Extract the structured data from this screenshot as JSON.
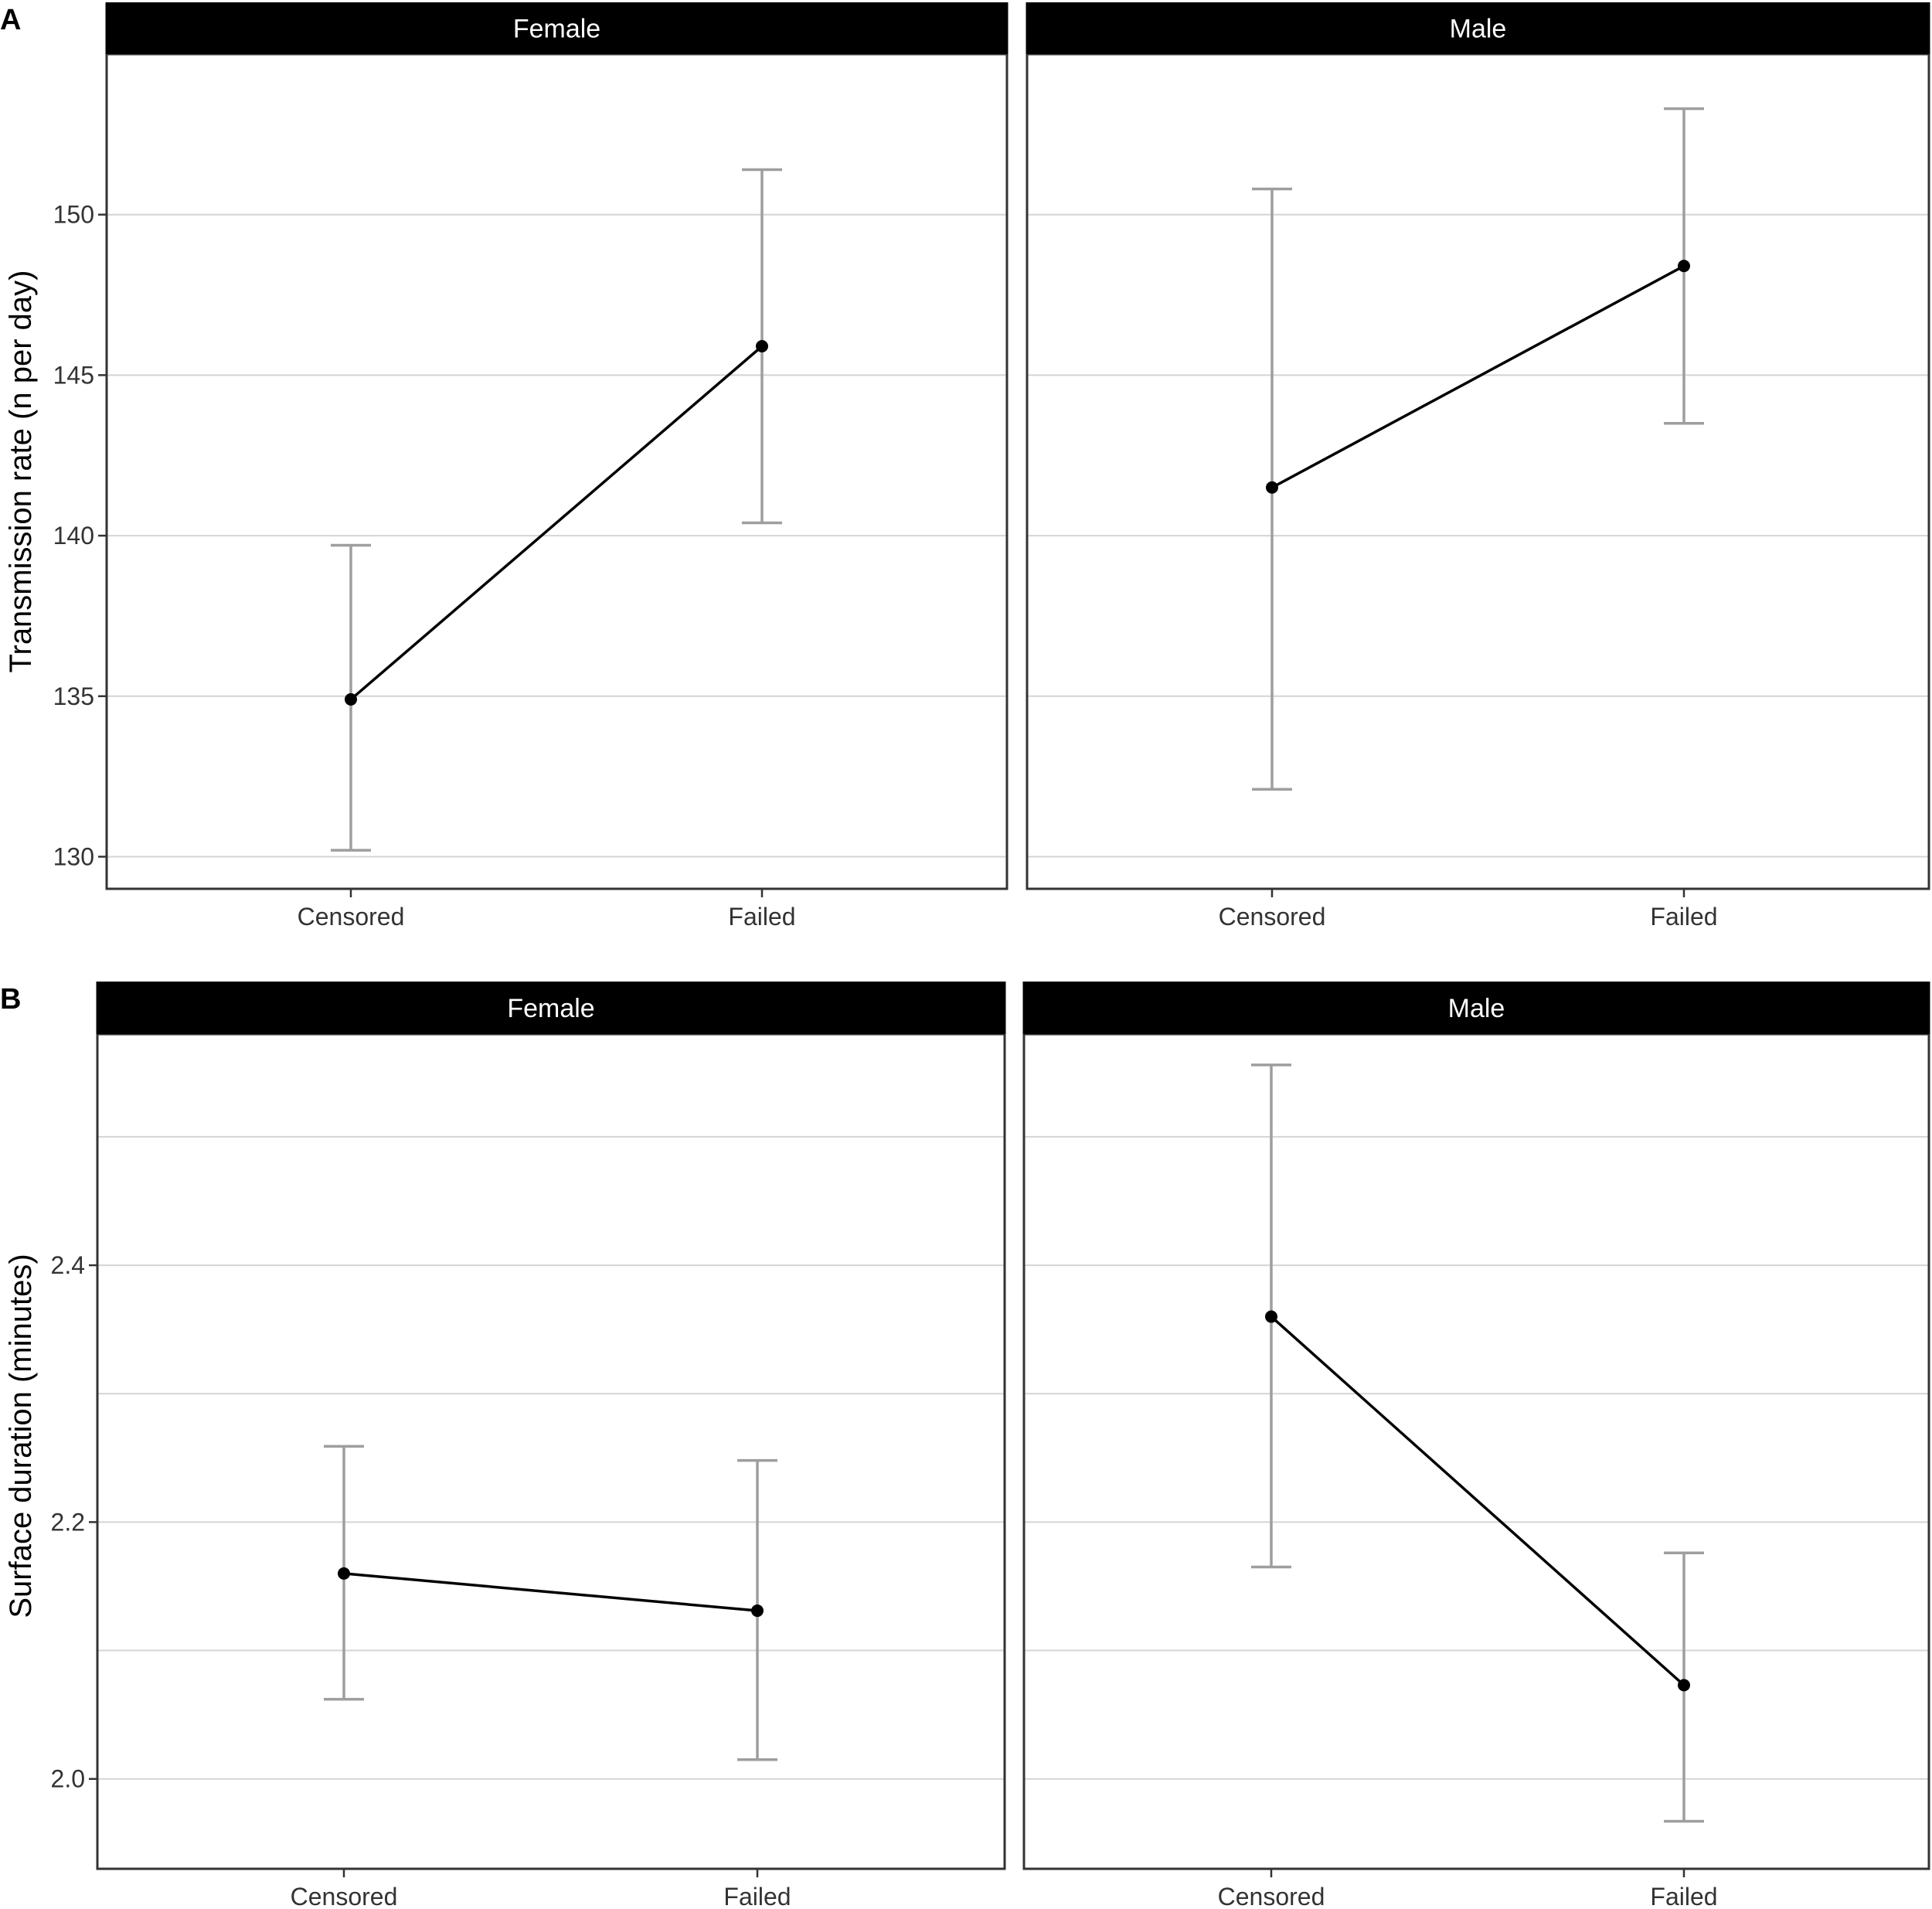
{
  "chart_data": [
    {
      "type": "line",
      "panel_label": "A",
      "ylabel": "Transmission rate (n per day)",
      "xlabel": "",
      "categories": [
        "Censored",
        "Failed"
      ],
      "ylim": [
        129.0,
        155.0
      ],
      "yticks": [
        130,
        135,
        140,
        145,
        150
      ],
      "grid": true,
      "colors": {
        "line": "#000000",
        "errorbar": "#9e9e9e",
        "strip": "#000000"
      },
      "facets": [
        {
          "label": "Female",
          "points": [
            {
              "x": "Censored",
              "y": 134.9,
              "lower": 130.2,
              "upper": 139.7
            },
            {
              "x": "Failed",
              "y": 145.9,
              "lower": 140.4,
              "upper": 151.4
            }
          ]
        },
        {
          "label": "Male",
          "points": [
            {
              "x": "Censored",
              "y": 141.5,
              "lower": 132.1,
              "upper": 150.8
            },
            {
              "x": "Failed",
              "y": 148.4,
              "lower": 143.5,
              "upper": 153.3
            }
          ]
        }
      ]
    },
    {
      "type": "line",
      "panel_label": "B",
      "ylabel": "Surface duration (minutes)",
      "xlabel": "",
      "categories": [
        "Censored",
        "Failed"
      ],
      "ylim": [
        1.93,
        2.58
      ],
      "yticks": [
        2.0,
        2.2,
        2.4
      ],
      "ytick_labels": [
        "2.0",
        "2.2",
        "2.4"
      ],
      "minor_grid": [
        2.1,
        2.3,
        2.5
      ],
      "grid": true,
      "colors": {
        "line": "#000000",
        "errorbar": "#9e9e9e",
        "strip": "#000000"
      },
      "facets": [
        {
          "label": "Female",
          "points": [
            {
              "x": "Censored",
              "y": 2.16,
              "lower": 2.062,
              "upper": 2.259
            },
            {
              "x": "Failed",
              "y": 2.131,
              "lower": 2.015,
              "upper": 2.248
            }
          ]
        },
        {
          "label": "Male",
          "points": [
            {
              "x": "Censored",
              "y": 2.36,
              "lower": 2.165,
              "upper": 2.556
            },
            {
              "x": "Failed",
              "y": 2.073,
              "lower": 1.967,
              "upper": 2.176
            }
          ]
        }
      ]
    }
  ]
}
